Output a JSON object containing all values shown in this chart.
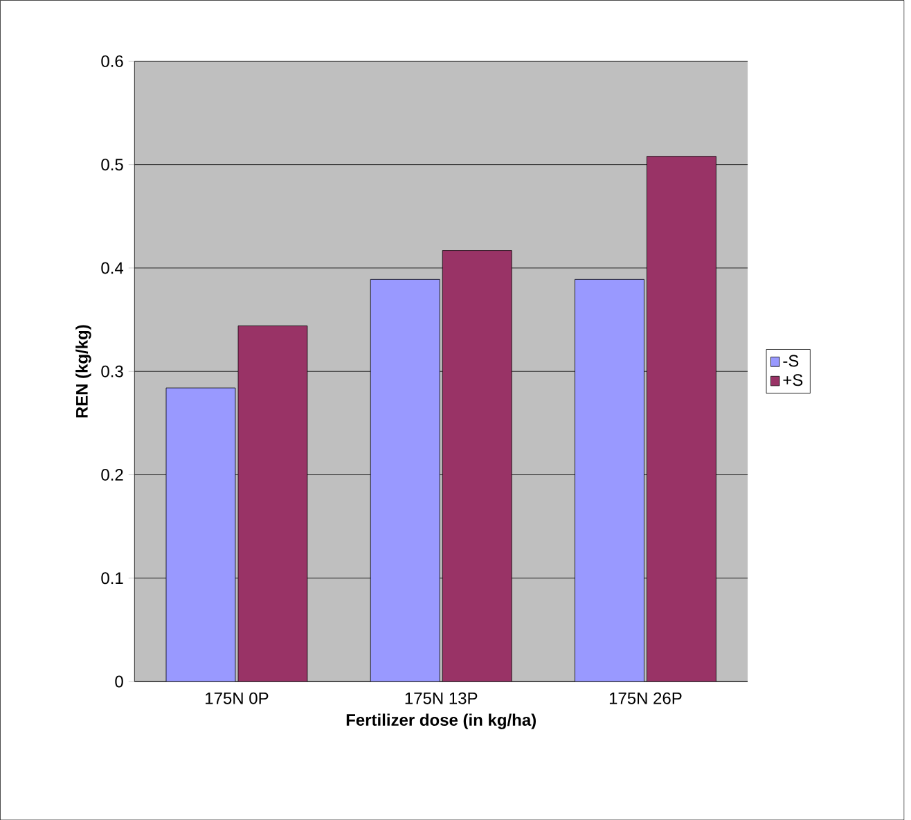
{
  "chart_data": {
    "type": "bar",
    "xlabel": "Fertilizer dose (in kg/ha)",
    "ylabel": "REN (kg/kg)",
    "categories": [
      "175N 0P",
      "175N 13P",
      "175N 26P"
    ],
    "series": [
      {
        "name": "-S",
        "color": "#9999ff",
        "values": [
          0.284,
          0.389,
          0.389
        ]
      },
      {
        "name": "+S",
        "color": "#993366",
        "values": [
          0.344,
          0.417,
          0.508
        ]
      }
    ],
    "ylim": [
      0,
      0.6
    ],
    "yticks": [
      0,
      0.1,
      0.2,
      0.3,
      0.4,
      0.5,
      0.6
    ],
    "grid": "y",
    "legend": "right"
  }
}
